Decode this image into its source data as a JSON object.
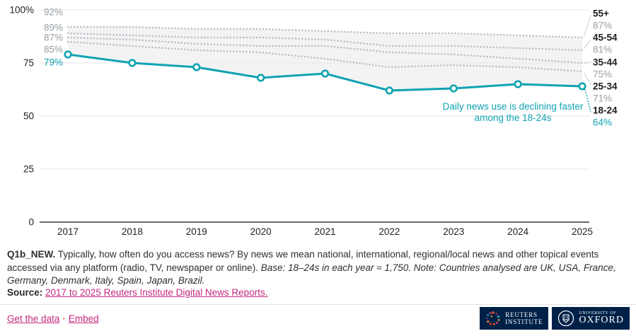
{
  "colors": {
    "teal": "#10a3b2",
    "gray_line": "#b7bcc6",
    "gray_text": "#98a0a6",
    "dark_text": "#1c1c1c",
    "grid": "#e4e4e4",
    "axis": "#3a3a3a",
    "area_fill": "#ebebeb",
    "link_pink": "#c5287f",
    "separator_orange": "#e06a2b",
    "logo_navy": "#002147"
  },
  "chart_data": {
    "type": "line",
    "x": [
      "2017",
      "2018",
      "2019",
      "2020",
      "2021",
      "2022",
      "2023",
      "2024",
      "2025"
    ],
    "series": [
      {
        "name": "55+",
        "values": [
          92,
          92,
          91,
          91,
          90,
          89,
          89,
          88,
          87
        ],
        "style": "dotted"
      },
      {
        "name": "45-54",
        "values": [
          89,
          88,
          87,
          87,
          86,
          83,
          83,
          82,
          81
        ],
        "style": "dotted"
      },
      {
        "name": "35-44",
        "values": [
          87,
          86,
          84,
          83,
          83,
          80,
          79,
          77,
          75
        ],
        "style": "dotted"
      },
      {
        "name": "25-34",
        "values": [
          85,
          83,
          81,
          80,
          77,
          73,
          74,
          73,
          71
        ],
        "style": "dotted"
      },
      {
        "name": "18-24",
        "values": [
          79,
          75,
          73,
          68,
          70,
          62,
          63,
          65,
          64
        ],
        "style": "solid",
        "highlight": true
      }
    ],
    "ylim": [
      0,
      100
    ],
    "y_ticks": [
      {
        "label": "100%",
        "value": 100
      },
      {
        "label": "75",
        "value": 75
      },
      {
        "label": "50",
        "value": 50
      },
      {
        "label": "25",
        "value": 25
      },
      {
        "label": "0",
        "value": 0
      }
    ],
    "start_labels": [
      "92%",
      "89%",
      "87%",
      "85%",
      "79%"
    ],
    "right_labels": [
      {
        "text": "55+",
        "kind": "name"
      },
      {
        "text": "87%",
        "kind": "pct"
      },
      {
        "text": "45-54",
        "kind": "name"
      },
      {
        "text": "81%",
        "kind": "pct"
      },
      {
        "text": "35-44",
        "kind": "name"
      },
      {
        "text": "75%",
        "kind": "pct"
      },
      {
        "text": "25-34",
        "kind": "name"
      },
      {
        "text": "71%",
        "kind": "pct"
      },
      {
        "text": "18-24",
        "kind": "name"
      },
      {
        "text": "64%",
        "kind": "pct-highlight"
      }
    ],
    "annotation_lines": [
      "Daily news use is declining faster",
      "among the 18-24s"
    ],
    "grid": true,
    "legend_position": "right-edge-labels"
  },
  "footnote": {
    "bold": "Q1b_NEW.",
    "normal": " Typically, how often do you access news? By news we mean national, international, regional/local news and other topical events accessed via any platform (radio, TV, newspaper or online). ",
    "italic": "Base: 18–24s in each year ≈ 1,750. Note: Countries analysed are UK, USA, France, Germany, Denmark, Italy, Spain, Japan, Brazil."
  },
  "source": {
    "label": "Source:",
    "link_text": "2017 to 2025 Reuters Institute Digital News Reports."
  },
  "footer_links": {
    "get_data": "Get the data",
    "separator": "·",
    "embed": "Embed"
  },
  "logos": {
    "reuters": {
      "line1": "REUTERS",
      "line2": "INSTITUTE"
    },
    "oxford": {
      "line1": "UNIVERSITY OF",
      "line2": "OXFORD"
    }
  }
}
